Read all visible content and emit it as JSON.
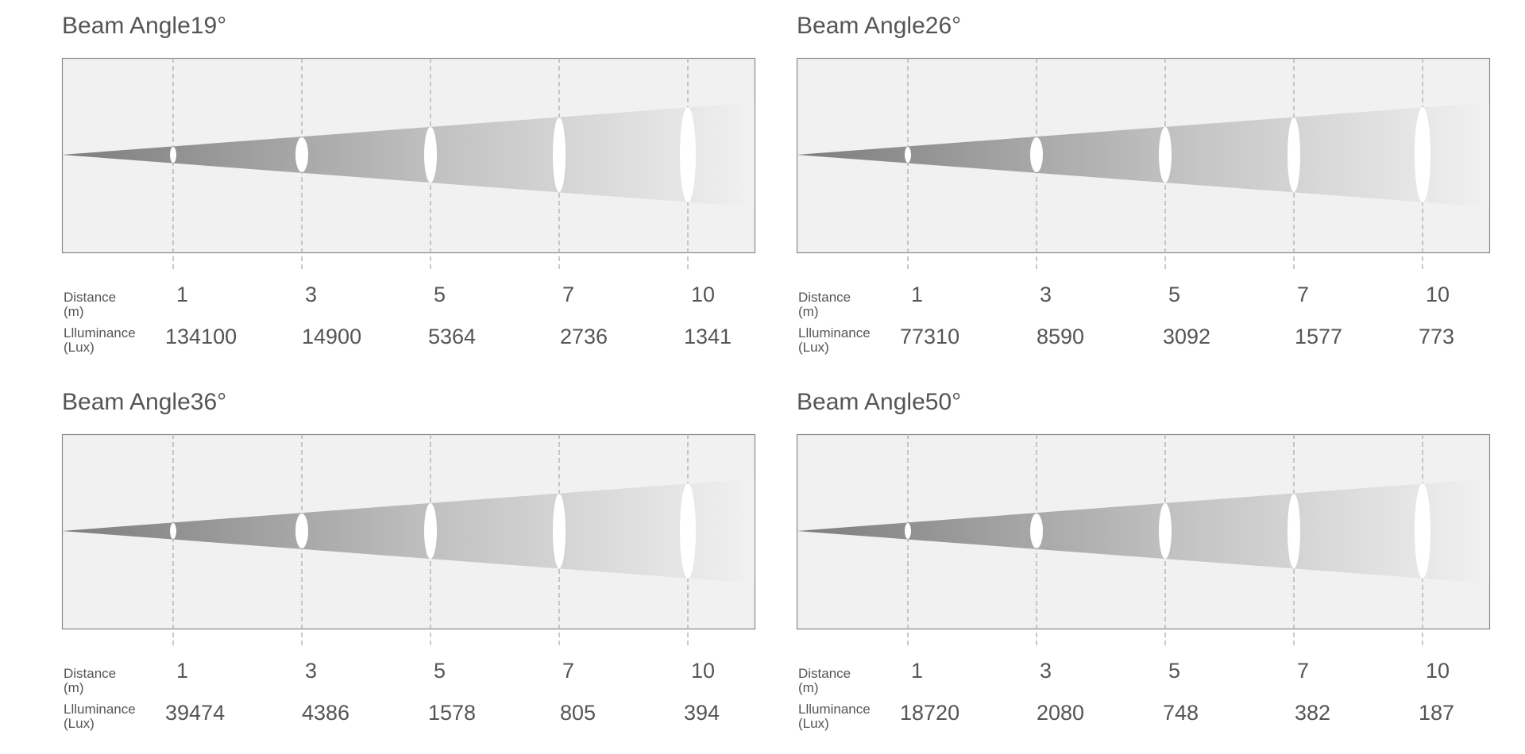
{
  "labels": {
    "distance_line1": "Distance",
    "distance_line2": "(m)",
    "illuminance_line1": "Llluminance",
    "illuminance_line2": "(Lux)"
  },
  "colors": {
    "box_fill": "#f1f1f1",
    "box_stroke": "#8a8a8a",
    "beam_dark": "#7c7c7c",
    "beam_light": "#f1f1f1",
    "dashed_line": "#a8a8a8",
    "spot": "#ffffff",
    "text": "#555555"
  },
  "panels": [
    {
      "title": "Beam Angle19°",
      "distances": [
        "1",
        "3",
        "5",
        "7",
        "10"
      ],
      "illuminance": [
        "134100",
        "14900",
        "5364",
        "2736",
        "1341"
      ]
    },
    {
      "title": "Beam Angle26°",
      "distances": [
        "1",
        "3",
        "5",
        "7",
        "10"
      ],
      "illuminance": [
        "77310",
        "8590",
        "3092",
        "1577",
        "773"
      ]
    },
    {
      "title": "Beam Angle36°",
      "distances": [
        "1",
        "3",
        "5",
        "7",
        "10"
      ],
      "illuminance": [
        "39474",
        "4386",
        "1578",
        "805",
        "394"
      ]
    },
    {
      "title": "Beam Angle50°",
      "distances": [
        "1",
        "3",
        "5",
        "7",
        "10"
      ],
      "illuminance": [
        "18720",
        "2080",
        "748",
        "382",
        "187"
      ]
    }
  ]
}
